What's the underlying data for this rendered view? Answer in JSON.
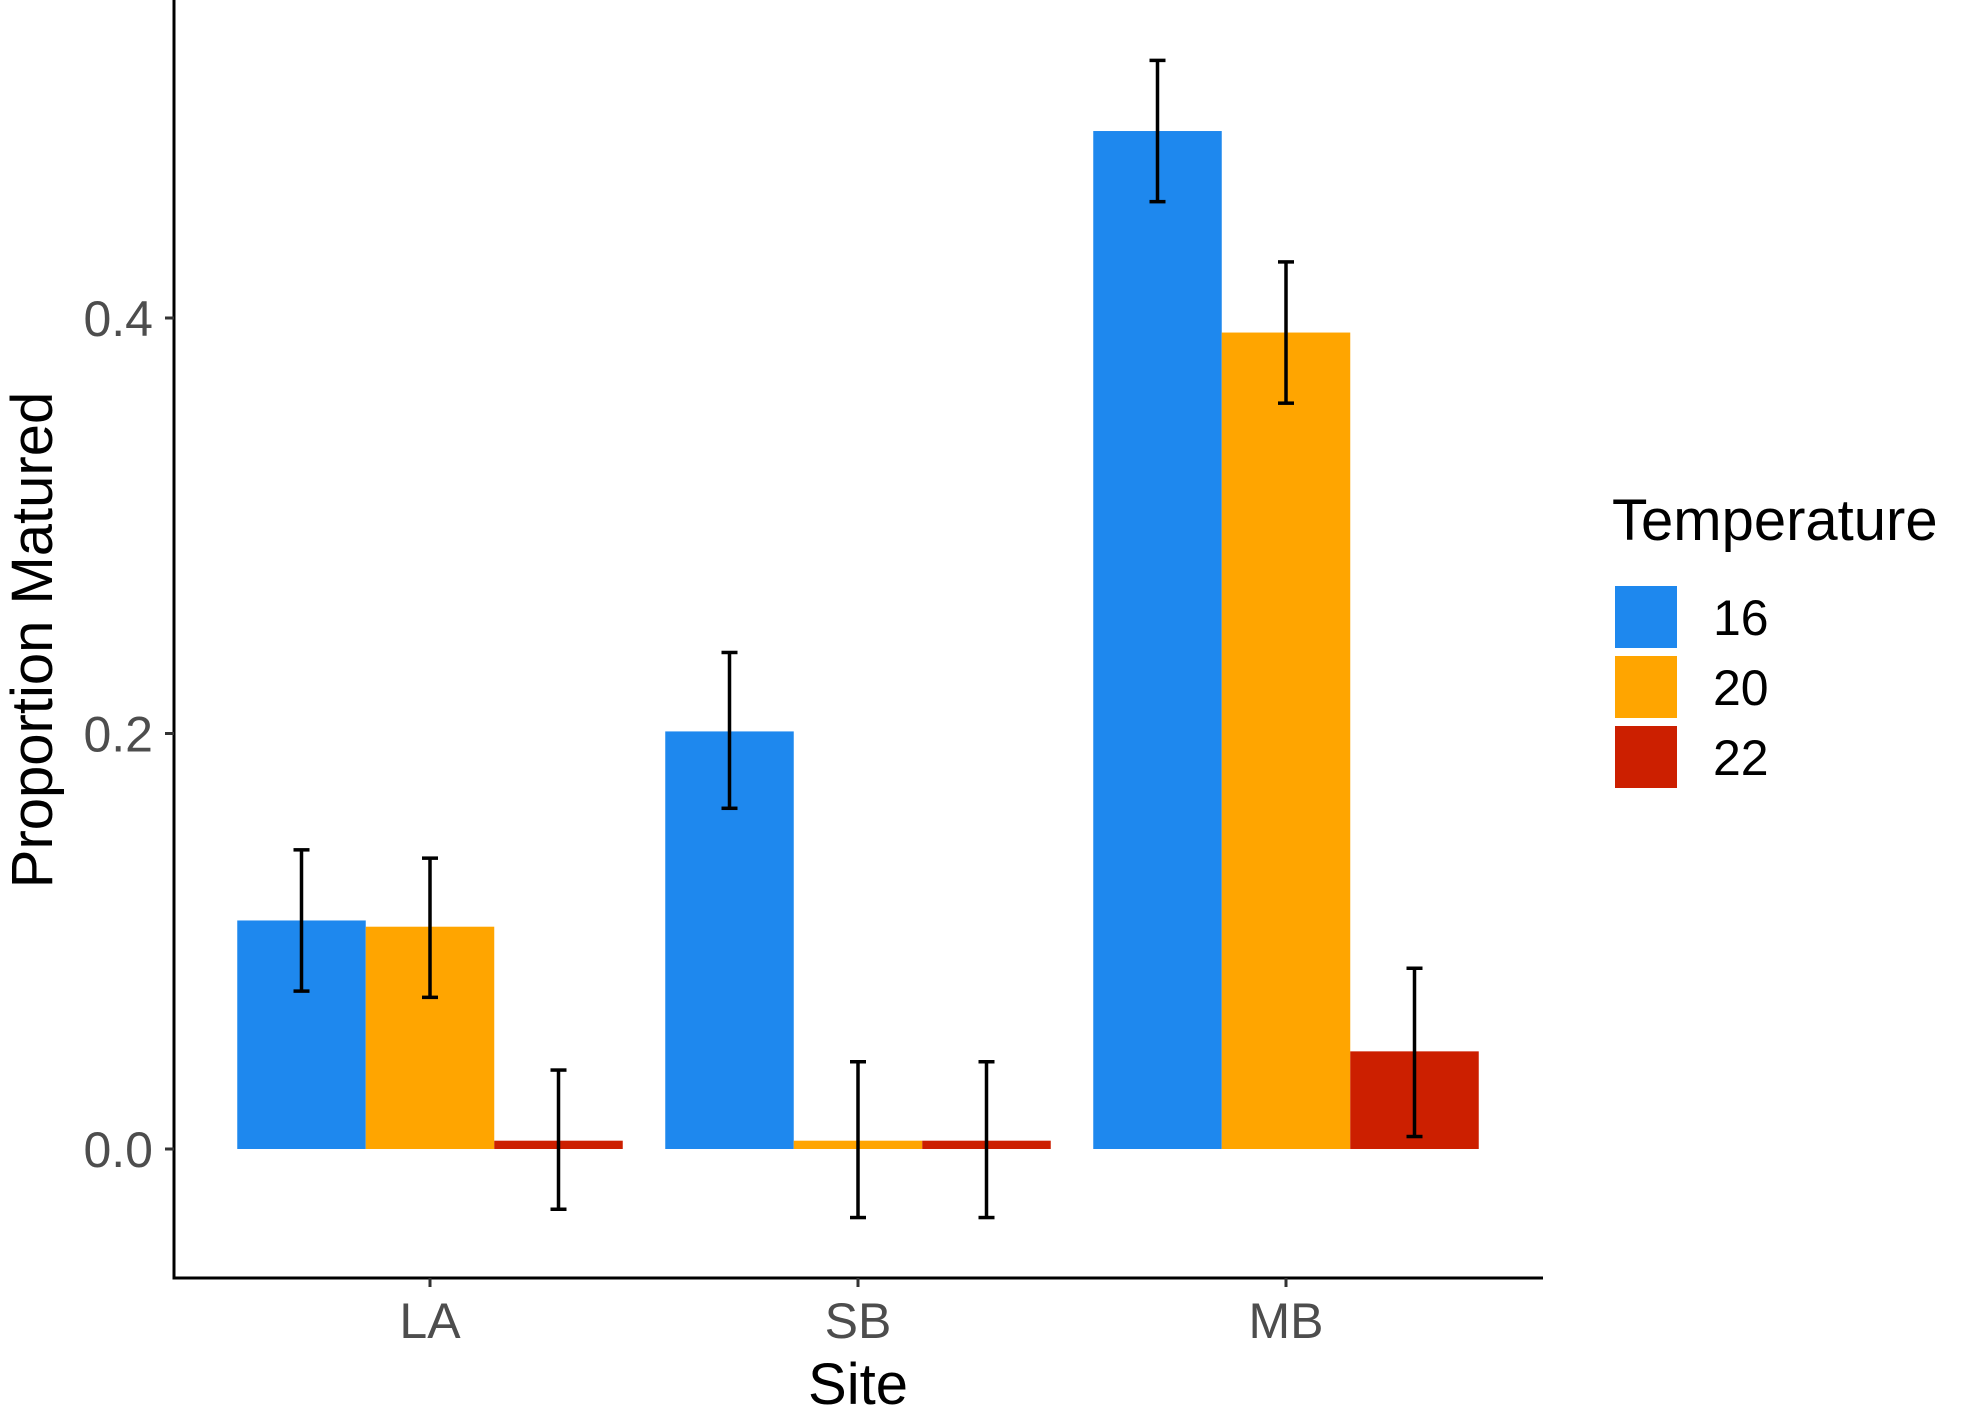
{
  "chart_data": {
    "type": "bar",
    "xlabel": "Site",
    "ylabel": "Proportion Matured",
    "categories": [
      "LA",
      "SB",
      "MB"
    ],
    "ylim": [
      -0.062,
      0.55
    ],
    "yticks": [
      0.0,
      0.2,
      0.4
    ],
    "ytick_labels": [
      "0.0",
      "0.2",
      "0.4"
    ],
    "grid": false,
    "legend": {
      "title": "Temperature",
      "position": "right"
    },
    "series": [
      {
        "name": "16",
        "color": "#1E88EE",
        "values": [
          0.11,
          0.201,
          0.49
        ],
        "error_low": [
          0.076,
          0.164,
          0.456
        ],
        "error_high": [
          0.144,
          0.239,
          0.524
        ]
      },
      {
        "name": "20",
        "color": "#FFA500",
        "values": [
          0.107,
          0.004,
          0.393
        ],
        "error_low": [
          0.073,
          -0.033,
          0.359
        ],
        "error_high": [
          0.14,
          0.042,
          0.427
        ]
      },
      {
        "name": "22",
        "color": "#CC1F00",
        "values": [
          0.004,
          0.004,
          0.047
        ],
        "error_low": [
          -0.029,
          -0.033,
          0.006
        ],
        "error_high": [
          0.038,
          0.042,
          0.087
        ]
      }
    ]
  }
}
